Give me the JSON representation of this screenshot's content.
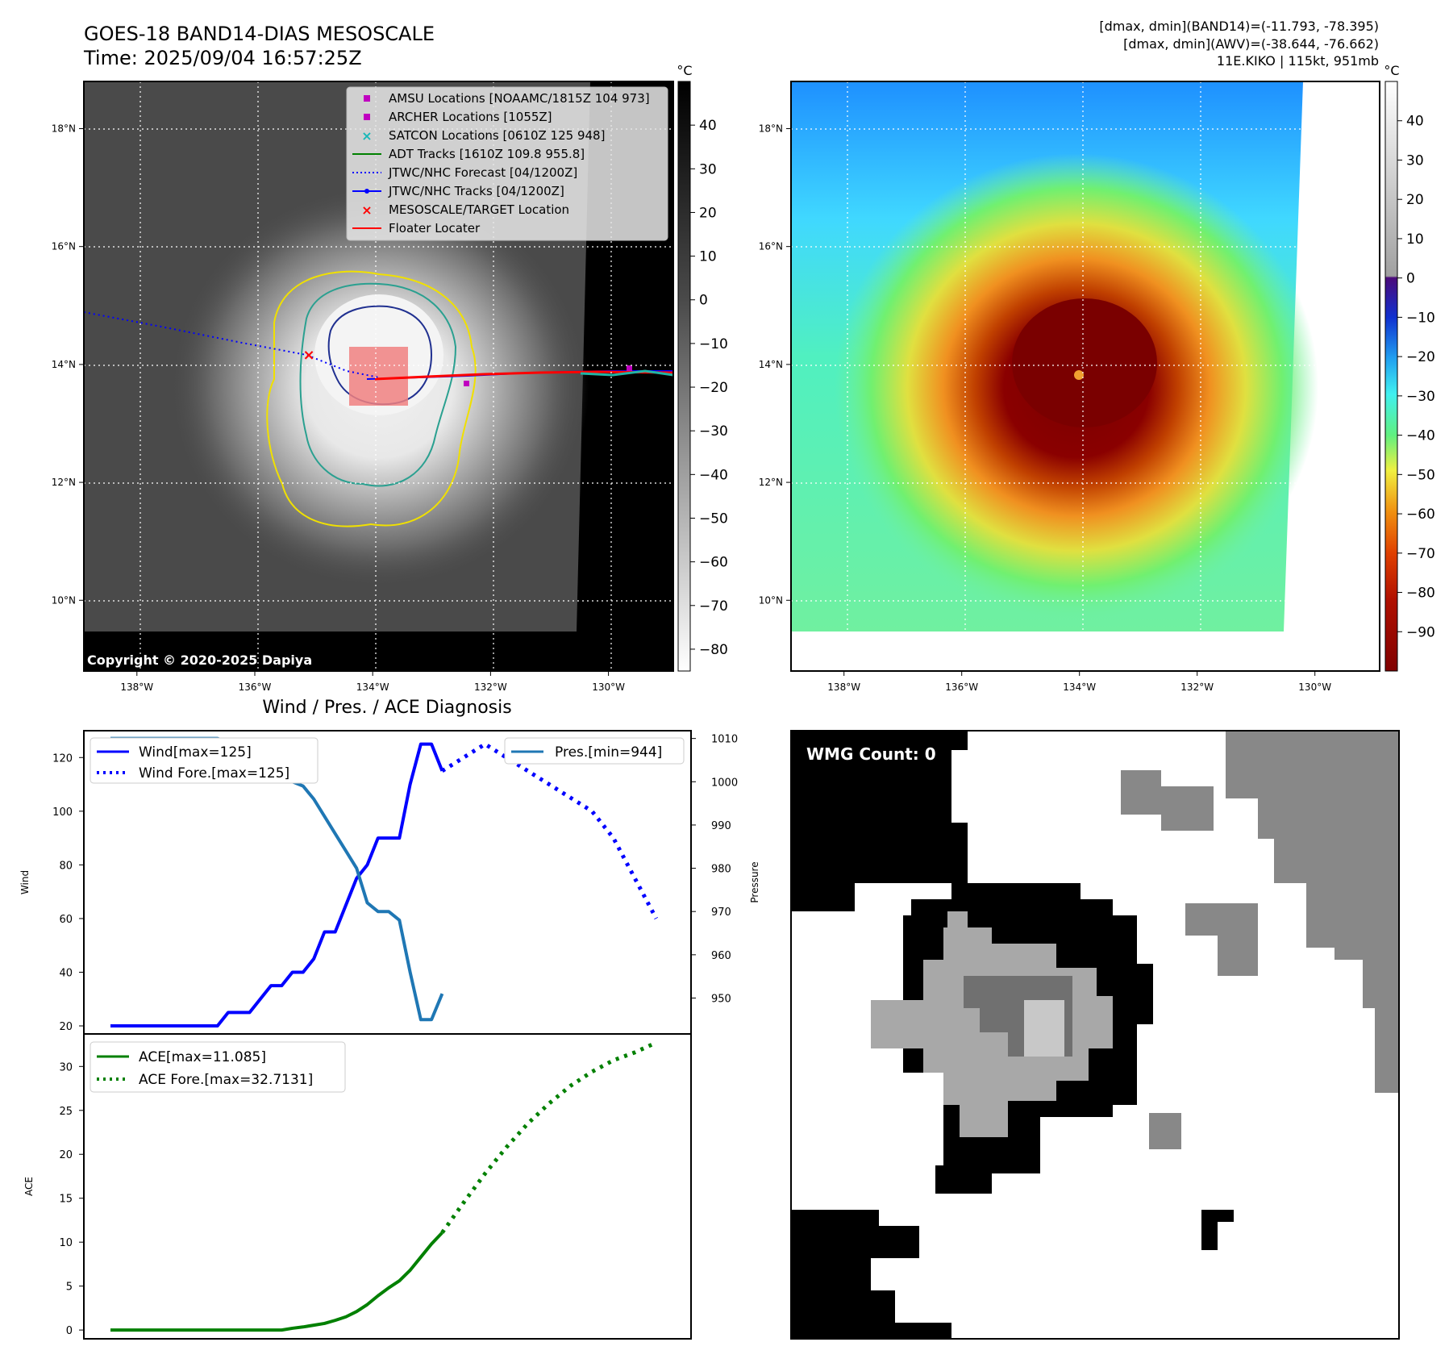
{
  "header": {
    "title": "GOES-18 BAND14-DIAS MESOSCALE",
    "time": "Time: 2025/09/04 16:57:25Z",
    "stats_band14": "[dmax, dmin](BAND14)=(-11.793, -78.395)",
    "stats_awv": "[dmax, dmin](AWV)=(-38.644, -76.662)",
    "storm": "11E.KIKO | 115kt, 951mb"
  },
  "map_axes": {
    "lon_labels": [
      "138°W",
      "136°W",
      "134°W",
      "132°W",
      "130°W"
    ],
    "lat_labels": [
      "18°N",
      "16°N",
      "14°N",
      "12°N",
      "10°N"
    ],
    "lon_values": [
      -138,
      -136,
      -134,
      -132,
      -130
    ],
    "lat_values": [
      18,
      16,
      14,
      12,
      10
    ],
    "lon_range": [
      -138.9,
      -128.9
    ],
    "lat_range": [
      8.8,
      18.8
    ]
  },
  "ir_colorbar": {
    "unit": "°C",
    "ticks": [
      "40",
      "30",
      "20",
      "10",
      "0",
      "−10",
      "−20",
      "−30",
      "−40",
      "−50",
      "−60",
      "−70",
      "−80"
    ],
    "tick_values": [
      40,
      30,
      20,
      10,
      0,
      -10,
      -20,
      -30,
      -40,
      -50,
      -60,
      -70,
      -80
    ],
    "range": [
      -85,
      50
    ]
  },
  "awv_colorbar": {
    "unit": "°C",
    "ticks": [
      "40",
      "30",
      "20",
      "10",
      "0",
      "−10",
      "−20",
      "−30",
      "−40",
      "−50",
      "−60",
      "−70",
      "−80",
      "−90"
    ],
    "tick_values": [
      40,
      30,
      20,
      10,
      0,
      -10,
      -20,
      -30,
      -40,
      -50,
      -60,
      -70,
      -80,
      -90
    ],
    "range": [
      -100,
      50
    ]
  },
  "legend": {
    "items": [
      {
        "label": "AMSU Locations [NOAAMC/1815Z 104 973]",
        "color": "#c000c0",
        "marker": "square"
      },
      {
        "label": "ARCHER Locations [1055Z]",
        "color": "#c000c0",
        "marker": "square"
      },
      {
        "label": "SATCON Locations [0610Z 125 948]",
        "color": "#18b8b8",
        "marker": "x"
      },
      {
        "label": "ADT Tracks [1610Z 109.8 955.8]",
        "color": "#008000",
        "marker": "line"
      },
      {
        "label": "JTWC/NHC Forecast [04/1200Z]",
        "color": "#0000ff",
        "marker": "dotted"
      },
      {
        "label": "JTWC/NHC Tracks [04/1200Z]",
        "color": "#0000ff",
        "marker": "line-dot"
      },
      {
        "label": "MESOSCALE/TARGET Location",
        "color": "#ff0000",
        "marker": "x"
      },
      {
        "label": "Floater Locater",
        "color": "#ff0000",
        "marker": "line"
      }
    ]
  },
  "copyright": "Copyright © 2020-2025 Dapiya",
  "wmg": {
    "label": "WMG Count: 0"
  },
  "chart_data": [
    {
      "type": "line",
      "title": "Wind / Pres. / ACE Diagnosis",
      "ylabel": "Wind",
      "ylim": [
        17,
        130
      ],
      "yticks": [
        20,
        40,
        60,
        80,
        100,
        120
      ],
      "y2label": "Pressure",
      "y2lim": [
        941.7,
        1011.8
      ],
      "y2ticks": [
        950,
        960,
        970,
        980,
        990,
        1000,
        1010
      ],
      "series": [
        {
          "name": "Wind[max=125]",
          "style": "solid",
          "color": "#0000ff",
          "x": [
            0,
            1,
            2,
            3,
            4,
            5,
            6,
            7,
            8,
            9,
            10,
            11,
            12,
            13,
            14,
            15,
            16,
            17,
            18,
            19,
            20,
            21,
            22,
            23,
            24,
            25,
            26,
            27,
            28,
            29,
            30,
            31
          ],
          "values": [
            20,
            20,
            20,
            20,
            20,
            20,
            20,
            20,
            20,
            20,
            20,
            25,
            25,
            25,
            30,
            35,
            35,
            40,
            40,
            45,
            55,
            55,
            65,
            75,
            80,
            90,
            90,
            90,
            110,
            125,
            125,
            115
          ]
        },
        {
          "name": "Wind Fore.[max=125]",
          "style": "dotted",
          "color": "#0000ff",
          "x": [
            31,
            33,
            35,
            37,
            39,
            41,
            43,
            45,
            47,
            49,
            51
          ],
          "values": [
            115,
            120,
            125,
            120,
            115,
            110,
            105,
            100,
            90,
            75,
            60
          ]
        },
        {
          "name": "Pres.[min=944]",
          "style": "solid",
          "color": "#1f77b4",
          "x": [
            0,
            1,
            2,
            3,
            4,
            5,
            6,
            7,
            8,
            9,
            10,
            11,
            12,
            13,
            14,
            15,
            16,
            17,
            18,
            19,
            20,
            21,
            22,
            23,
            24,
            25,
            26,
            27,
            28,
            29,
            30,
            31
          ],
          "values": [
            1010,
            1010,
            1010,
            1010,
            1010,
            1010,
            1010,
            1010,
            1010,
            1010,
            1010,
            1009,
            1009,
            1007,
            1005,
            1004,
            1002,
            1000,
            999,
            996,
            992,
            988,
            984,
            980,
            972,
            970,
            970,
            968,
            956,
            945,
            945,
            951
          ]
        }
      ]
    },
    {
      "type": "line",
      "ylabel": "ACE",
      "ylim": [
        -1,
        33.7
      ],
      "yticks": [
        0,
        5,
        10,
        15,
        20,
        25,
        30
      ],
      "series": [
        {
          "name": "ACE[max=11.085]",
          "style": "solid",
          "color": "#008000",
          "x": [
            0,
            4,
            8,
            12,
            16,
            17,
            18,
            19,
            20,
            21,
            22,
            23,
            24,
            25,
            26,
            27,
            28,
            29,
            30,
            31
          ],
          "values": [
            0,
            0,
            0,
            0,
            0,
            0.2,
            0.35,
            0.55,
            0.75,
            1.1,
            1.5,
            2.1,
            2.9,
            3.9,
            4.8,
            5.6,
            6.8,
            8.3,
            9.8,
            11.085
          ]
        },
        {
          "name": "ACE Fore.[max=32.7131]",
          "style": "dotted",
          "color": "#008000",
          "x": [
            31,
            33,
            35,
            37,
            39,
            41,
            43,
            45,
            47,
            49,
            51
          ],
          "values": [
            11.085,
            14.5,
            17.8,
            20.8,
            23.5,
            25.8,
            27.8,
            29.4,
            30.7,
            31.6,
            32.7131
          ]
        }
      ]
    }
  ]
}
